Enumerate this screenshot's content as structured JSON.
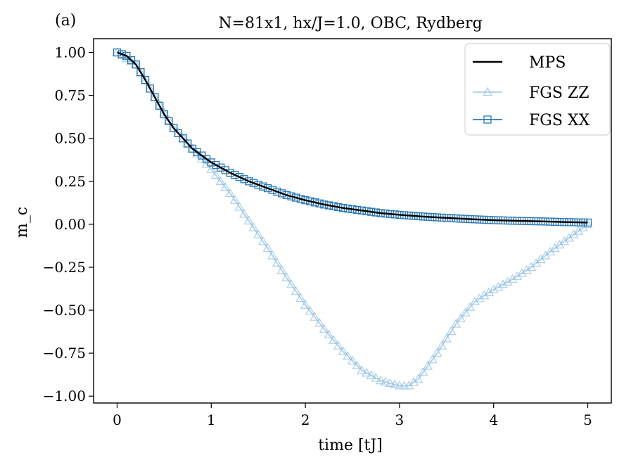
{
  "panel_label": "(a)",
  "chart_data": {
    "type": "line",
    "title": "N=81x1, hx/J=1.0, OBC, Rydberg",
    "xlabel": "time [tJ]",
    "ylabel": "m_c",
    "xlim": [
      -0.25,
      5.25
    ],
    "ylim": [
      -1.04,
      1.08
    ],
    "x_ticks": [
      0,
      1,
      2,
      3,
      4,
      5
    ],
    "x_tick_labels": [
      "0",
      "1",
      "2",
      "3",
      "4",
      "5"
    ],
    "y_ticks": [
      1.0,
      0.75,
      0.5,
      0.25,
      0.0,
      -0.25,
      -0.5,
      -0.75,
      -1.0
    ],
    "y_tick_labels": [
      "1.00",
      "0.75",
      "0.50",
      "0.25",
      "0.00",
      "−0.25",
      "−0.50",
      "−0.75",
      "−1.00"
    ],
    "legend_position": "top-right",
    "series": [
      {
        "name": "MPS",
        "color": "#000000",
        "marker": "none",
        "x": [
          0,
          0.1,
          0.2,
          0.3,
          0.4,
          0.5,
          0.6,
          0.7,
          0.8,
          0.9,
          1.0,
          1.2,
          1.4,
          1.6,
          1.8,
          2.0,
          2.2,
          2.4,
          2.6,
          2.8,
          3.0,
          3.25,
          3.5,
          3.75,
          4.0,
          4.25,
          4.5,
          4.75,
          5.0
        ],
        "y": [
          1.0,
          0.98,
          0.93,
          0.84,
          0.74,
          0.64,
          0.56,
          0.5,
          0.44,
          0.4,
          0.36,
          0.3,
          0.25,
          0.21,
          0.17,
          0.14,
          0.115,
          0.095,
          0.08,
          0.065,
          0.055,
          0.045,
          0.037,
          0.03,
          0.024,
          0.02,
          0.017,
          0.013,
          0.01
        ]
      },
      {
        "name": "FGS ZZ",
        "color": "#8fbde0",
        "marker": "triangle",
        "x": [
          0,
          0.2,
          0.4,
          0.6,
          0.8,
          1.0,
          1.2,
          1.4,
          1.6,
          1.8,
          2.0,
          2.2,
          2.4,
          2.6,
          2.8,
          3.0,
          3.1,
          3.2,
          3.4,
          3.6,
          3.8,
          4.0,
          4.2,
          4.4,
          4.6,
          4.8,
          5.0
        ],
        "y": [
          1.0,
          0.93,
          0.74,
          0.56,
          0.44,
          0.32,
          0.18,
          0.02,
          -0.14,
          -0.31,
          -0.47,
          -0.61,
          -0.74,
          -0.85,
          -0.91,
          -0.94,
          -0.94,
          -0.9,
          -0.75,
          -0.58,
          -0.45,
          -0.38,
          -0.32,
          -0.25,
          -0.16,
          -0.08,
          0.0
        ]
      },
      {
        "name": "FGS XX",
        "color": "#2a78b6",
        "marker": "square",
        "x": [
          0,
          0.1,
          0.2,
          0.3,
          0.4,
          0.5,
          0.6,
          0.7,
          0.8,
          0.9,
          1.0,
          1.2,
          1.4,
          1.6,
          1.8,
          2.0,
          2.2,
          2.4,
          2.6,
          2.8,
          3.0,
          3.25,
          3.5,
          3.75,
          4.0,
          4.25,
          4.5,
          4.75,
          5.0
        ],
        "y": [
          1.0,
          0.98,
          0.93,
          0.84,
          0.74,
          0.64,
          0.56,
          0.5,
          0.44,
          0.4,
          0.36,
          0.3,
          0.25,
          0.21,
          0.17,
          0.14,
          0.115,
          0.095,
          0.08,
          0.065,
          0.055,
          0.045,
          0.037,
          0.03,
          0.024,
          0.02,
          0.017,
          0.013,
          0.01
        ]
      }
    ]
  }
}
